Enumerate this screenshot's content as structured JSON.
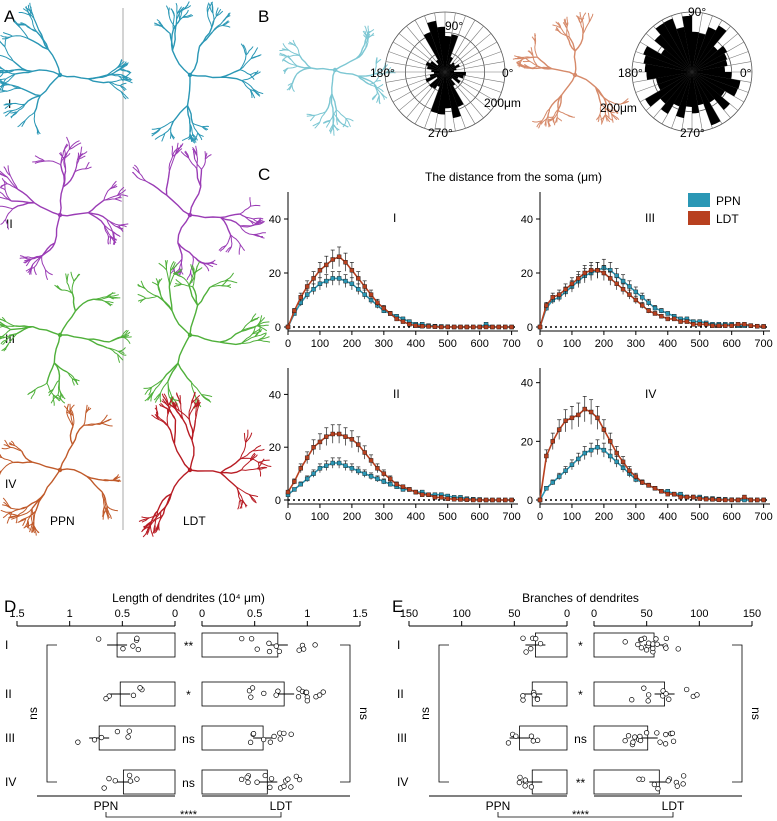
{
  "panels": {
    "A": "A",
    "B": "B",
    "C": "C",
    "D": "D",
    "E": "E"
  },
  "colors": {
    "PPN": "#2a97b5",
    "LDT": "#b8401f",
    "I": "#2a97b5",
    "II": "#9a3cb5",
    "III": "#4fb03a",
    "IV_ppn": "#c05a2a",
    "IV_ldt": "#b81c24",
    "dark": "#111111"
  },
  "icons": {
    "neuron_I_ppn": "neuron-tracing-icon",
    "neuron_I_ldt": "neuron-tracing-icon"
  },
  "panelA": {
    "rows": [
      "I",
      "II",
      "III",
      "IV"
    ],
    "labels": {
      "ppn": "PPN",
      "ldt": "LDT"
    }
  },
  "panelB": {
    "polar1": {
      "angles": {
        "a90": "90°",
        "a0": "0°",
        "a180": "180°",
        "a270": "270°"
      },
      "radius_label": "200μm"
    },
    "polar2": {
      "angles": {
        "a90": "90°",
        "a0": "0°",
        "a180": "180°",
        "a270": "270°"
      },
      "radius_label": "200μm"
    }
  },
  "panelC": {
    "title": "The distance from the soma (μm)",
    "legend": [
      "PPN",
      "LDT"
    ]
  },
  "chart_data": [
    {
      "id": "C-I",
      "type": "line",
      "title": "I",
      "x": [
        0,
        20,
        40,
        60,
        80,
        100,
        120,
        140,
        160,
        180,
        200,
        220,
        240,
        260,
        280,
        300,
        320,
        340,
        360,
        380,
        400,
        420,
        440,
        460,
        480,
        500,
        520,
        540,
        560,
        580,
        600,
        620,
        640,
        660,
        680,
        700
      ],
      "series": [
        {
          "name": "PPN",
          "values": [
            0,
            5,
            9,
            12,
            14,
            16,
            17,
            18,
            18,
            17,
            16,
            14,
            12,
            10,
            8,
            6,
            5,
            4,
            3,
            2,
            1,
            1,
            0.5,
            0.3,
            0.2,
            0.1,
            0,
            0,
            0,
            0,
            0,
            1,
            0,
            0,
            0,
            0
          ]
        },
        {
          "name": "LDT",
          "values": [
            0,
            6,
            11,
            15,
            18,
            21,
            23,
            25,
            26,
            24,
            21,
            18,
            15,
            12,
            9,
            7,
            5,
            3,
            2,
            1,
            0.5,
            0.3,
            0.2,
            0.1,
            0,
            0,
            0,
            0,
            0,
            0,
            0,
            0,
            0,
            0,
            0,
            0
          ]
        }
      ],
      "xlim": [
        0,
        720
      ],
      "ylim": [
        0,
        40
      ],
      "xticks": [
        0,
        100,
        200,
        300,
        400,
        500,
        600,
        700
      ],
      "yticks": [
        0,
        20,
        40
      ]
    },
    {
      "id": "C-III",
      "type": "line",
      "title": "III",
      "x": [
        0,
        20,
        40,
        60,
        80,
        100,
        120,
        140,
        160,
        180,
        200,
        220,
        240,
        260,
        280,
        300,
        320,
        340,
        360,
        380,
        400,
        420,
        440,
        460,
        480,
        500,
        520,
        540,
        560,
        580,
        600,
        620,
        640,
        660,
        680,
        700
      ],
      "series": [
        {
          "name": "PPN",
          "values": [
            0,
            7,
            10,
            11,
            13,
            15,
            17,
            19,
            20,
            21,
            22,
            21,
            19,
            17,
            15,
            13,
            11,
            9,
            7,
            6,
            5,
            4,
            3,
            3,
            2,
            2,
            1.5,
            1,
            1,
            1,
            1,
            0.5,
            0.5,
            0.5,
            0.3,
            0.2
          ]
        },
        {
          "name": "LDT",
          "values": [
            0,
            8,
            11,
            12,
            14,
            16,
            18,
            20,
            21,
            21,
            20,
            18,
            16,
            14,
            12,
            10,
            8,
            6,
            5,
            4,
            3,
            3,
            2,
            2,
            1,
            1,
            1,
            0.5,
            0.5,
            0.5,
            0.5,
            1,
            1,
            0.5,
            0.3,
            0.2
          ]
        }
      ],
      "xlim": [
        0,
        720
      ],
      "ylim": [
        0,
        50
      ],
      "xticks": [
        0,
        100,
        200,
        300,
        400,
        500,
        600,
        700
      ],
      "yticks": [
        0,
        20,
        40
      ]
    },
    {
      "id": "C-II",
      "type": "line",
      "title": "II",
      "x": [
        0,
        20,
        40,
        60,
        80,
        100,
        120,
        140,
        160,
        180,
        200,
        220,
        240,
        260,
        280,
        300,
        320,
        340,
        360,
        380,
        400,
        420,
        440,
        460,
        480,
        500,
        520,
        540,
        560,
        580,
        600,
        620,
        640,
        660,
        680,
        700
      ],
      "series": [
        {
          "name": "PPN",
          "values": [
            2,
            4,
            6,
            8,
            10,
            12,
            13,
            14,
            14,
            13,
            12,
            11,
            10,
            9,
            8,
            7,
            6,
            5,
            4,
            4,
            3,
            3,
            2,
            2,
            2,
            1.5,
            1,
            1,
            0.5,
            0.3,
            0.2,
            0,
            0,
            0,
            0,
            0
          ]
        },
        {
          "name": "LDT",
          "values": [
            3,
            7,
            12,
            16,
            20,
            22,
            24,
            25,
            25,
            24,
            23,
            21,
            18,
            15,
            12,
            10,
            8,
            6,
            5,
            4,
            3,
            2,
            2,
            1,
            1,
            0.5,
            0.3,
            0.2,
            0.1,
            0,
            0,
            0,
            0,
            0,
            0,
            0
          ]
        }
      ],
      "xlim": [
        0,
        720
      ],
      "ylim": [
        0,
        50
      ],
      "xticks": [
        0,
        100,
        200,
        300,
        400,
        500,
        600,
        700
      ],
      "yticks": [
        0,
        20,
        40
      ]
    },
    {
      "id": "C-IV",
      "type": "line",
      "title": "IV",
      "x": [
        0,
        20,
        40,
        60,
        80,
        100,
        120,
        140,
        160,
        180,
        200,
        220,
        240,
        260,
        280,
        300,
        320,
        340,
        360,
        380,
        400,
        420,
        440,
        460,
        480,
        500,
        520,
        540,
        560,
        580,
        600,
        620,
        640,
        660,
        680,
        700
      ],
      "series": [
        {
          "name": "PPN",
          "values": [
            0,
            4,
            6,
            8,
            10,
            12,
            14,
            16,
            17,
            18,
            17,
            15,
            13,
            11,
            9,
            7,
            6,
            5,
            4,
            3,
            3,
            2,
            2,
            1,
            1,
            1,
            0.5,
            0.5,
            0.3,
            0.2,
            0.1,
            0,
            0,
            0,
            0,
            0
          ]
        },
        {
          "name": "LDT",
          "values": [
            0,
            15,
            20,
            24,
            27,
            28,
            29,
            31,
            30,
            28,
            24,
            20,
            16,
            13,
            10,
            8,
            6,
            5,
            4,
            3,
            2,
            2,
            1,
            1,
            1,
            0.5,
            0.3,
            0.2,
            0.1,
            0,
            0,
            0,
            1,
            0,
            0,
            0
          ]
        }
      ],
      "xlim": [
        0,
        720
      ],
      "ylim": [
        0,
        45
      ],
      "xticks": [
        0,
        100,
        200,
        300,
        400,
        500,
        600,
        700
      ],
      "yticks": [
        0,
        20,
        40
      ]
    },
    {
      "id": "D",
      "type": "bar",
      "title": "Length of dendrites (10⁴ μm)",
      "categories": [
        "I",
        "II",
        "III",
        "IV"
      ],
      "series": [
        {
          "name": "PPN",
          "values": [
            0.55,
            0.52,
            0.72,
            0.49
          ]
        },
        {
          "name": "LDT",
          "values": [
            0.72,
            0.78,
            0.58,
            0.62
          ]
        }
      ],
      "xlim": [
        0,
        1.5
      ],
      "ppn_ticks": [
        "1.5",
        "1",
        "0.5",
        "0"
      ],
      "ldt_ticks": [
        "0",
        "0.5",
        "1",
        "1.5"
      ],
      "sig_within": [
        "**",
        "*",
        "ns",
        "ns"
      ],
      "sig_ppn": "ns",
      "sig_ldt": "ns",
      "sig_between": "****",
      "group_labels": [
        "PPN",
        "LDT"
      ]
    },
    {
      "id": "E",
      "type": "bar",
      "title": "Branches of dendrites",
      "categories": [
        "I",
        "II",
        "III",
        "IV"
      ],
      "series": [
        {
          "name": "PPN",
          "values": [
            30,
            33,
            45,
            33
          ]
        },
        {
          "name": "LDT",
          "values": [
            57,
            67,
            51,
            62
          ]
        }
      ],
      "xlim": [
        0,
        150
      ],
      "ppn_ticks": [
        "150",
        "100",
        "50",
        "0"
      ],
      "ldt_ticks": [
        "0",
        "50",
        "100",
        "150"
      ],
      "sig_within": [
        "*",
        "*",
        "ns",
        "**"
      ],
      "sig_ppn": "ns",
      "sig_ldt": "ns",
      "sig_between": "****",
      "group_labels": [
        "PPN",
        "LDT"
      ]
    }
  ]
}
